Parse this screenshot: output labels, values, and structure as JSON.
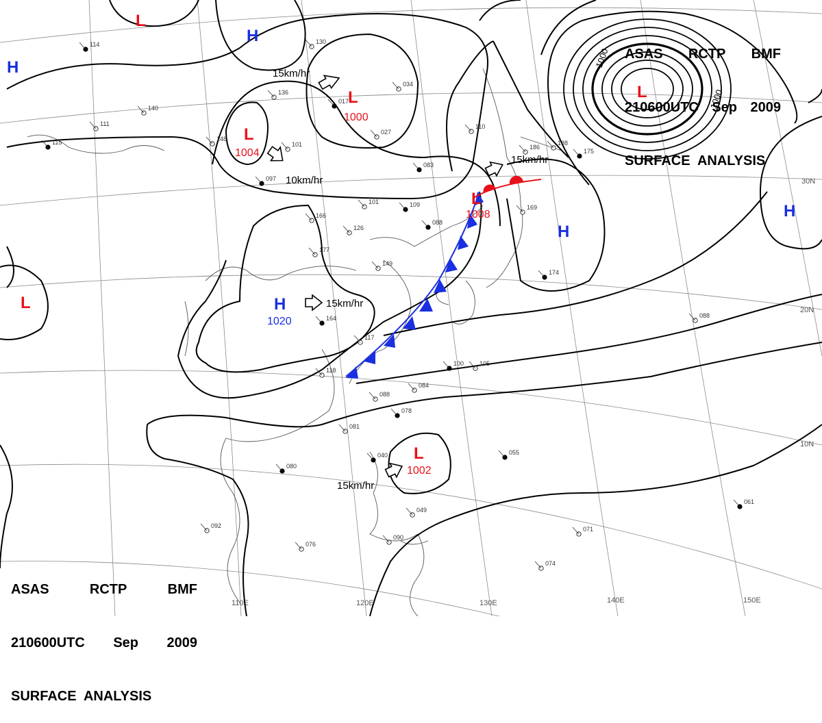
{
  "header": {
    "line1": [
      "ASAS",
      "RCTP",
      "BMF"
    ],
    "line2": [
      "210600UTC",
      "Sep",
      "2009"
    ],
    "line3": "SURFACE  ANALYSIS"
  },
  "lon_labels": [
    "110E",
    "120E",
    "130E",
    "140E",
    "150E"
  ],
  "lat_labels": [
    "30N",
    "20N",
    "10N"
  ],
  "isobar_labels": [
    "1000",
    "1000"
  ],
  "pressure_systems": [
    {
      "type": "L",
      "value": ""
    },
    {
      "type": "H",
      "value": ""
    },
    {
      "type": "H",
      "value": ""
    },
    {
      "type": "L",
      "value": "1000"
    },
    {
      "type": "L",
      "value": "1004"
    },
    {
      "type": "L",
      "value": "1008"
    },
    {
      "type": "L",
      "value": ""
    },
    {
      "type": "H",
      "value": ""
    },
    {
      "type": "H",
      "value": ""
    },
    {
      "type": "L",
      "value": ""
    },
    {
      "type": "H",
      "value": "1020"
    },
    {
      "type": "L",
      "value": "1002"
    }
  ],
  "motion_labels": [
    "15km/hr",
    "10km/hr",
    "15km/hr",
    "15km/hr",
    "15km/hr"
  ],
  "station_numbers": [
    "114",
    "140",
    "111",
    "115",
    "148",
    "101",
    "097",
    "130",
    "136",
    "017",
    "034",
    "027",
    "083",
    "110",
    "101",
    "109",
    "166",
    "126",
    "088",
    "177",
    "149",
    "164",
    "117",
    "118",
    "100",
    "105",
    "088",
    "078",
    "084",
    "081",
    "080",
    "092",
    "076",
    "040",
    "049",
    "090",
    "055",
    "071",
    "074",
    "061",
    "088",
    "169",
    "174",
    "186",
    "188",
    "175"
  ],
  "colors": {
    "low": "#e8101a",
    "high": "#1a2fe0",
    "isobar": "#000000",
    "grid": "#888888"
  }
}
